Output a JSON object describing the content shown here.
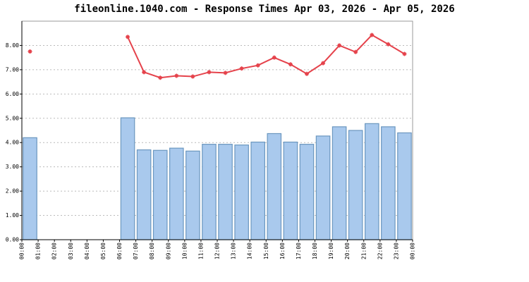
{
  "chart_data": {
    "type": "bar_line",
    "title": "fileonline.1040.com - Response Times Apr 03, 2026 - Apr 05, 2026",
    "x": [
      0.5,
      1.5,
      2.5,
      3.5,
      4.5,
      5.5,
      6.5,
      7.5,
      8.5,
      9.5,
      10.5,
      11.5,
      12.5,
      13.5,
      14.5,
      15.5,
      16.5,
      17.5,
      18.5,
      19.5,
      20.5,
      21.5,
      22.5,
      23.5
    ],
    "xlim": [
      0,
      24
    ],
    "xticks": [
      {
        "value": 0,
        "label": "00:00"
      },
      {
        "value": 1,
        "label": "01:00"
      },
      {
        "value": 2,
        "label": "02:00"
      },
      {
        "value": 3,
        "label": "03:00"
      },
      {
        "value": 4,
        "label": "04:00"
      },
      {
        "value": 5,
        "label": "05:00"
      },
      {
        "value": 6,
        "label": "06:00"
      },
      {
        "value": 7,
        "label": "07:00"
      },
      {
        "value": 8,
        "label": "08:00"
      },
      {
        "value": 9,
        "label": "09:00"
      },
      {
        "value": 10,
        "label": "10:00"
      },
      {
        "value": 11,
        "label": "11:00"
      },
      {
        "value": 12,
        "label": "12:00"
      },
      {
        "value": 13,
        "label": "13:00"
      },
      {
        "value": 14,
        "label": "14:00"
      },
      {
        "value": 15,
        "label": "15:00"
      },
      {
        "value": 16,
        "label": "16:00"
      },
      {
        "value": 17,
        "label": "17:00"
      },
      {
        "value": 18,
        "label": "18:00"
      },
      {
        "value": 19,
        "label": "19:00"
      },
      {
        "value": 20,
        "label": "20:00"
      },
      {
        "value": 21,
        "label": "21:00"
      },
      {
        "value": 22,
        "label": "22:00"
      },
      {
        "value": 23,
        "label": "23:00"
      },
      {
        "value": 24,
        "label": "00:00"
      }
    ],
    "ylim": [
      0,
      9
    ],
    "yticks": [
      {
        "value": 0,
        "label": "0.00"
      },
      {
        "value": 1,
        "label": "1.00"
      },
      {
        "value": 2,
        "label": "2.00"
      },
      {
        "value": 3,
        "label": "3.00"
      },
      {
        "value": 4,
        "label": "4.00"
      },
      {
        "value": 5,
        "label": "5.00"
      },
      {
        "value": 6,
        "label": "6.00"
      },
      {
        "value": 7,
        "label": "7.00"
      },
      {
        "value": 8,
        "label": "8.00"
      }
    ],
    "grid": true,
    "series": [
      {
        "type": "bar",
        "color": "#a9c9ed",
        "edge_color": "#6b97bf",
        "values": [
          4.2,
          null,
          null,
          null,
          null,
          null,
          5.02,
          3.7,
          3.68,
          3.77,
          3.65,
          3.93,
          3.93,
          3.9,
          4.02,
          4.37,
          4.02,
          3.93,
          4.27,
          4.65,
          4.5,
          4.78,
          4.65,
          4.4
        ]
      },
      {
        "type": "line",
        "color": "#e5424b",
        "values": [
          7.75,
          null,
          null,
          null,
          null,
          null,
          8.35,
          6.9,
          6.67,
          6.75,
          6.72,
          6.9,
          6.87,
          7.05,
          7.18,
          7.5,
          7.22,
          6.83,
          7.27,
          8.0,
          7.73,
          8.43,
          8.05,
          7.65
        ]
      }
    ]
  }
}
